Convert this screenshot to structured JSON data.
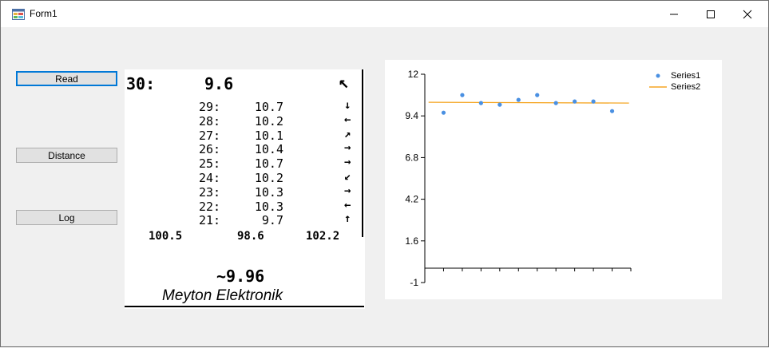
{
  "window": {
    "title": "Form1"
  },
  "buttons": {
    "read": "Read",
    "distance": "Distance",
    "log": "Log"
  },
  "target": {
    "current": {
      "shot": "30:",
      "value": "9.6",
      "arrow": "↖"
    },
    "history": [
      {
        "shot": "29:",
        "value": "10.7",
        "arrow": "↓"
      },
      {
        "shot": "28:",
        "value": "10.2",
        "arrow": "←"
      },
      {
        "shot": "27:",
        "value": "10.1",
        "arrow": "↗"
      },
      {
        "shot": "26:",
        "value": "10.4",
        "arrow": "→"
      },
      {
        "shot": "25:",
        "value": "10.7",
        "arrow": "→"
      },
      {
        "shot": "24:",
        "value": "10.2",
        "arrow": "↙"
      },
      {
        "shot": "23:",
        "value": "10.3",
        "arrow": "→"
      },
      {
        "shot": "22:",
        "value": "10.3",
        "arrow": "←"
      },
      {
        "shot": "21:",
        "value": "9.7",
        "arrow": "↑"
      }
    ],
    "totals": [
      "100.5",
      "98.6",
      "102.2"
    ],
    "average": "~9.96",
    "brand": "Meyton Elektronik"
  },
  "chart_data": {
    "type": "scatter",
    "ylim": [
      -1,
      12
    ],
    "yticks": [
      "12",
      "9.4",
      "6.8",
      "4.2",
      "1.6",
      "-1"
    ],
    "series": [
      {
        "name": "Series1",
        "kind": "point",
        "color": "#4a90e2",
        "x": [
          1,
          2,
          3,
          4,
          5,
          6,
          7,
          8,
          9,
          10
        ],
        "values": [
          9.6,
          10.7,
          10.2,
          10.1,
          10.4,
          10.7,
          10.2,
          10.3,
          10.3,
          9.7
        ]
      },
      {
        "name": "Series2",
        "kind": "line",
        "color": "#f5a623",
        "x": [
          0.2,
          10.9
        ],
        "values": [
          10.25,
          10.2
        ]
      }
    ],
    "legend": "top-right",
    "grid": false
  }
}
